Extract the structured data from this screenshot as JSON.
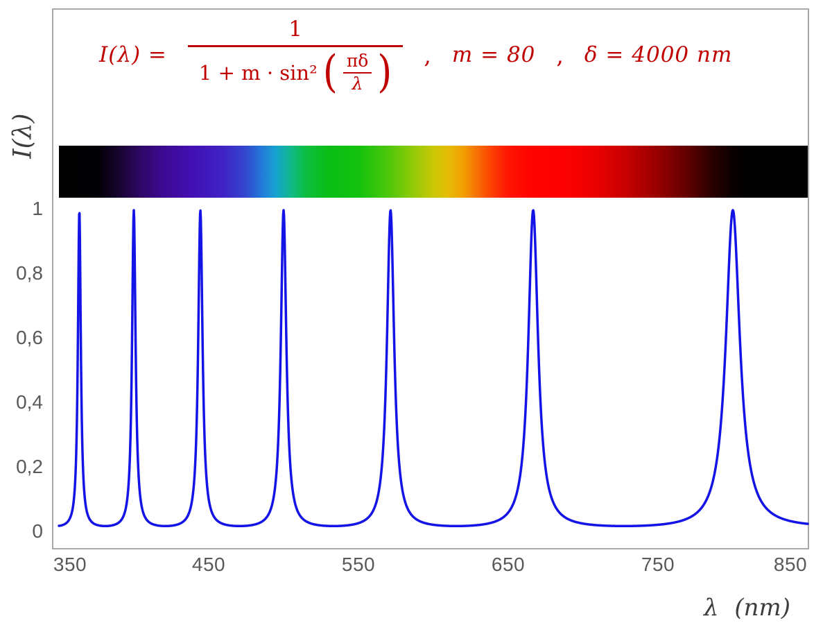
{
  "formula": {
    "lhs": "I(λ) =",
    "numerator": "1",
    "denominator_prefix": "1 + m · sin²",
    "open_paren": "(",
    "inner_numerator": "πδ",
    "inner_denominator": "λ",
    "close_paren": ")",
    "separator": ",",
    "separator2": ",",
    "param_m": "m = 80",
    "param_delta": "δ = 4000 nm",
    "color": "#c00000"
  },
  "axes": {
    "y_title": "I(λ)",
    "x_title": "λ (nm)"
  },
  "chart_data": {
    "type": "line",
    "title": "I(λ) = 1 / (1 + m·sin²(πδ/λ)) ,  m = 80 ,  δ = 4000 nm",
    "xlabel": "λ (nm)",
    "ylabel": "I(λ)",
    "xlim": [
      350,
      850
    ],
    "ylim": [
      0,
      1
    ],
    "grid": false,
    "legend": "none",
    "x_ticks": [
      350,
      450,
      550,
      650,
      750,
      850
    ],
    "y_ticks": [
      0,
      0.2,
      0.4,
      0.6,
      0.8,
      1
    ],
    "y_tick_labels": [
      "0",
      "0,2",
      "0,4",
      "0,6",
      "0,8",
      "1"
    ],
    "function": {
      "expression": "I(lambda) = 1 / (1 + m * sin(pi*delta/lambda)^2)",
      "m": 80,
      "delta_nm": 4000
    },
    "sample_step_nm": 0.25,
    "peak_wavelengths_nm": [
      363.6,
      400,
      444.4,
      500,
      571.4,
      666.7,
      800
    ],
    "peak_value": 1,
    "min_value": 0.0123,
    "line_color": "#1414e6",
    "line_width": 3.5,
    "spectrum_band": {
      "from_nm": 350,
      "to_nm": 850,
      "stops": [
        {
          "pos": 0,
          "color": "#000000"
        },
        {
          "pos": 5,
          "color": "#010004"
        },
        {
          "pos": 8,
          "color": "#17042e"
        },
        {
          "pos": 11,
          "color": "#2f0768"
        },
        {
          "pos": 14,
          "color": "#3c0a92"
        },
        {
          "pos": 18,
          "color": "#4310b6"
        },
        {
          "pos": 22,
          "color": "#3f23c4"
        },
        {
          "pos": 25,
          "color": "#3348cf"
        },
        {
          "pos": 27,
          "color": "#2379d8"
        },
        {
          "pos": 29,
          "color": "#17a3cf"
        },
        {
          "pos": 31,
          "color": "#10b98a"
        },
        {
          "pos": 33,
          "color": "#0cbe3f"
        },
        {
          "pos": 36,
          "color": "#0abd15"
        },
        {
          "pos": 40,
          "color": "#12c20d"
        },
        {
          "pos": 44,
          "color": "#4cc70a"
        },
        {
          "pos": 47,
          "color": "#8cca08"
        },
        {
          "pos": 50,
          "color": "#c9c806"
        },
        {
          "pos": 52,
          "color": "#e6bc05"
        },
        {
          "pos": 54,
          "color": "#f29e04"
        },
        {
          "pos": 56,
          "color": "#f86d03"
        },
        {
          "pos": 58,
          "color": "#fc3b02"
        },
        {
          "pos": 60,
          "color": "#fe1501"
        },
        {
          "pos": 63,
          "color": "#ff0300"
        },
        {
          "pos": 68,
          "color": "#fb0000"
        },
        {
          "pos": 72,
          "color": "#e80000"
        },
        {
          "pos": 76,
          "color": "#c40000"
        },
        {
          "pos": 80,
          "color": "#970000"
        },
        {
          "pos": 84,
          "color": "#600000"
        },
        {
          "pos": 87,
          "color": "#2e0000"
        },
        {
          "pos": 90,
          "color": "#0a0000"
        },
        {
          "pos": 92,
          "color": "#000000"
        },
        {
          "pos": 100,
          "color": "#000000"
        }
      ]
    }
  }
}
